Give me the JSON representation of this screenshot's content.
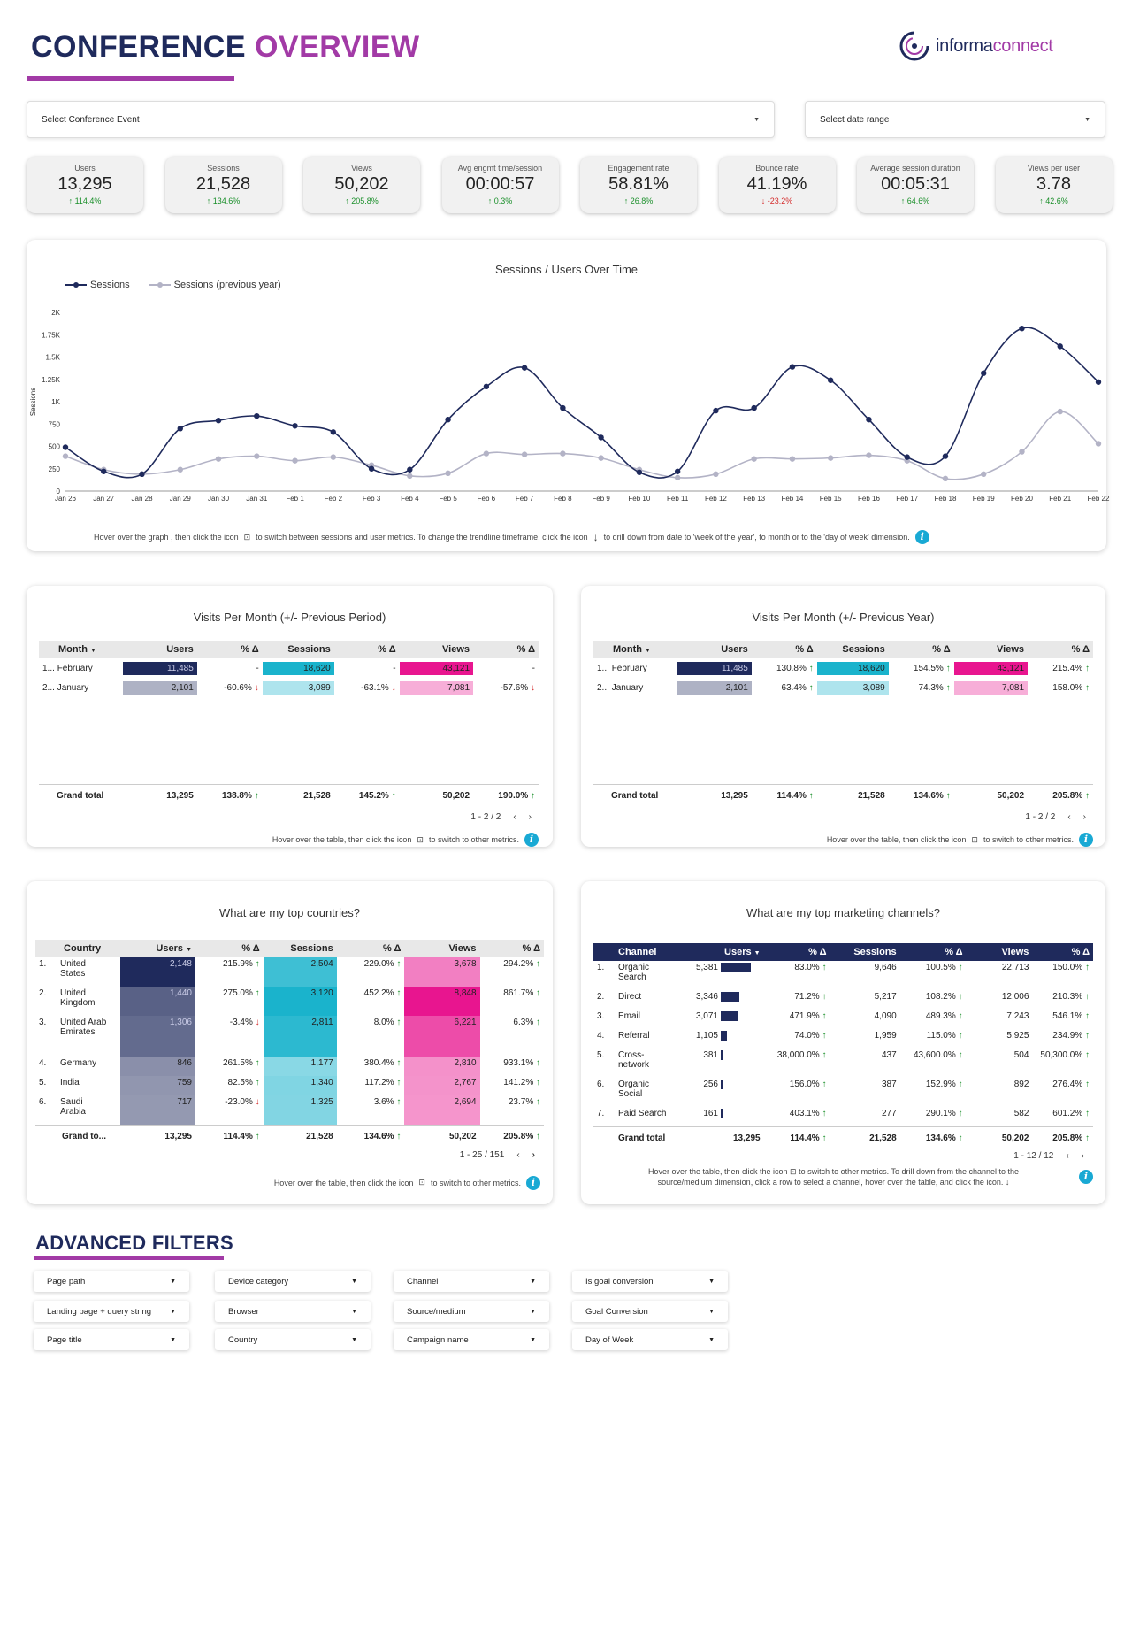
{
  "header": {
    "title_a": "CONFERENCE",
    "title_b": "OVERVIEW",
    "logo_a": "informa",
    "logo_b": "connect"
  },
  "filters_top": {
    "event": "Select Conference Event",
    "date": "Select date range"
  },
  "kpis": [
    {
      "label": "Users",
      "value": "13,295",
      "delta": "114.4%",
      "dir": "up"
    },
    {
      "label": "Sessions",
      "value": "21,528",
      "delta": "134.6%",
      "dir": "up"
    },
    {
      "label": "Views",
      "value": "50,202",
      "delta": "205.8%",
      "dir": "up"
    },
    {
      "label": "Avg engmt time/session",
      "value": "00:00:57",
      "delta": "0.3%",
      "dir": "up"
    },
    {
      "label": "Engagement rate",
      "value": "58.81%",
      "delta": "26.8%",
      "dir": "up"
    },
    {
      "label": "Bounce rate",
      "value": "41.19%",
      "delta": "-23.2%",
      "dir": "down"
    },
    {
      "label": "Average session duration",
      "value": "00:05:31",
      "delta": "64.6%",
      "dir": "up"
    },
    {
      "label": "Views per user",
      "value": "3.78",
      "delta": "42.6%",
      "dir": "up"
    }
  ],
  "colors": {
    "navy": "#1f2a5c",
    "gray_line": "#b3b3c6",
    "purple": "#a23aa6",
    "teal": "#1ab3cc",
    "magenta": "#e8158f"
  },
  "chart_data": {
    "type": "line",
    "title": "Sessions / Users Over Time",
    "ylabel": "Sessions",
    "ylim": [
      0,
      2000
    ],
    "yticks": [
      "0",
      "250",
      "500",
      "750",
      "1K",
      "1.25K",
      "1.5K",
      "1.75K",
      "2K"
    ],
    "x": [
      "Jan 26",
      "Jan 27",
      "Jan 28",
      "Jan 29",
      "Jan 30",
      "Jan 31",
      "Feb 1",
      "Feb 2",
      "Feb 3",
      "Feb 4",
      "Feb 5",
      "Feb 6",
      "Feb 7",
      "Feb 8",
      "Feb 9",
      "Feb 10",
      "Feb 11",
      "Feb 12",
      "Feb 13",
      "Feb 14",
      "Feb 15",
      "Feb 16",
      "Feb 17",
      "Feb 18",
      "Feb 19",
      "Feb 20",
      "Feb 21",
      "Feb 22"
    ],
    "series": [
      {
        "name": "Sessions",
        "values": [
          490,
          220,
          190,
          700,
          790,
          840,
          730,
          660,
          250,
          240,
          800,
          1170,
          1380,
          930,
          600,
          210,
          220,
          900,
          930,
          1390,
          1240,
          800,
          380,
          390,
          1320,
          1820,
          1620,
          1220
        ]
      },
      {
        "name": "Sessions (previous year)",
        "values": [
          390,
          240,
          190,
          240,
          360,
          390,
          340,
          380,
          290,
          170,
          200,
          420,
          410,
          420,
          370,
          240,
          150,
          190,
          360,
          360,
          370,
          400,
          340,
          140,
          190,
          440,
          890,
          530
        ]
      }
    ],
    "legend": "top-left"
  },
  "chart_hint": {
    "a": "Hover over the graph , then click the icon",
    "b": "to switch between sessions and user metrics. To change the trendline timeframe, click the icon",
    "c": "to drill down from date to 'week of the year', to month or to the 'day of week' dimension."
  },
  "visits_period": {
    "title": "Visits Per Month (+/- Previous Period)",
    "headers": [
      "Month",
      "Users",
      "% Δ",
      "Sessions",
      "% Δ",
      "Views",
      "% Δ"
    ],
    "rows": [
      {
        "idx": "1...",
        "month": "February",
        "users": "11,485",
        "users_d": "-",
        "sessions": "18,620",
        "sessions_d": "-",
        "views": "43,121",
        "views_d": "-",
        "users_share": 1,
        "sessions_share": 1,
        "views_share": 1
      },
      {
        "idx": "2...",
        "month": "January",
        "users": "2,101",
        "users_d": "-60.6%",
        "sessions": "3,089",
        "sessions_d": "-63.1%",
        "views": "7,081",
        "views_d": "-57.6%",
        "users_share": 0.18,
        "sessions_share": 0.17,
        "views_share": 0.16
      }
    ],
    "total": {
      "label": "Grand total",
      "users": "13,295",
      "users_d": "138.8%",
      "sessions": "21,528",
      "sessions_d": "145.2%",
      "views": "50,202",
      "views_d": "190.0%"
    },
    "pager": "1 - 2 / 2"
  },
  "visits_year": {
    "title": "Visits Per Month (+/- Previous Year)",
    "headers": [
      "Month",
      "Users",
      "% Δ",
      "Sessions",
      "% Δ",
      "Views",
      "% Δ"
    ],
    "rows": [
      {
        "idx": "1...",
        "month": "February",
        "users": "11,485",
        "users_d": "130.8%",
        "sessions": "18,620",
        "sessions_d": "154.5%",
        "views": "43,121",
        "views_d": "215.4%",
        "users_share": 1,
        "sessions_share": 1,
        "views_share": 1
      },
      {
        "idx": "2...",
        "month": "January",
        "users": "2,101",
        "users_d": "63.4%",
        "sessions": "3,089",
        "sessions_d": "74.3%",
        "views": "7,081",
        "views_d": "158.0%",
        "users_share": 0.18,
        "sessions_share": 0.17,
        "views_share": 0.16
      }
    ],
    "total": {
      "label": "Grand total",
      "users": "13,295",
      "users_d": "114.4%",
      "sessions": "21,528",
      "sessions_d": "134.6%",
      "views": "50,202",
      "views_d": "205.8%"
    },
    "pager": "1 - 2 / 2"
  },
  "table_hint": {
    "a": "Hover over the table, then click the icon",
    "b": "to  switch to other metrics."
  },
  "countries": {
    "title": "What are my top countries?",
    "headers": [
      "Country",
      "Users",
      "% Δ",
      "Sessions",
      "% Δ",
      "Views",
      "% Δ"
    ],
    "rows": [
      {
        "idx": "1.",
        "name": "United States",
        "users": "2,148",
        "users_d": "215.9%",
        "sessions": "2,504",
        "sessions_d": "229.0%",
        "views": "3,678",
        "views_d": "294.2%",
        "u": 1.0,
        "s": 0.8,
        "v": 0.42
      },
      {
        "idx": "2.",
        "name": "United Kingdom",
        "users": "1,440",
        "users_d": "275.0%",
        "sessions": "3,120",
        "sessions_d": "452.2%",
        "views": "8,848",
        "views_d": "861.7%",
        "u": 0.67,
        "s": 1.0,
        "v": 1.0
      },
      {
        "idx": "3.",
        "name": "United Arab Emirates",
        "users": "1,306",
        "users_d": "-3.4%",
        "sessions": "2,811",
        "sessions_d": "8.0%",
        "views": "6,221",
        "views_d": "6.3%",
        "u": 0.61,
        "s": 0.9,
        "v": 0.7
      },
      {
        "idx": "4.",
        "name": "Germany",
        "users": "846",
        "users_d": "261.5%",
        "sessions": "1,177",
        "sessions_d": "380.4%",
        "views": "2,810",
        "views_d": "933.1%",
        "u": 0.39,
        "s": 0.38,
        "v": 0.32
      },
      {
        "idx": "5.",
        "name": "India",
        "users": "759",
        "users_d": "82.5%",
        "sessions": "1,340",
        "sessions_d": "117.2%",
        "views": "2,767",
        "views_d": "141.2%",
        "u": 0.35,
        "s": 0.43,
        "v": 0.31
      },
      {
        "idx": "6.",
        "name": "Saudi Arabia",
        "users": "717",
        "users_d": "-23.0%",
        "sessions": "1,325",
        "sessions_d": "3.6%",
        "views": "2,694",
        "views_d": "23.7%",
        "u": 0.33,
        "s": 0.42,
        "v": 0.3
      }
    ],
    "total": {
      "label": "Grand to...",
      "users": "13,295",
      "users_d": "114.4%",
      "sessions": "21,528",
      "sessions_d": "134.6%",
      "views": "50,202",
      "views_d": "205.8%"
    },
    "pager": "1 - 25 / 151"
  },
  "channels": {
    "title": "What are my top marketing channels?",
    "headers": [
      "Channel",
      "Users",
      "% Δ",
      "Sessions",
      "% Δ",
      "Views",
      "% Δ"
    ],
    "rows": [
      {
        "idx": "1.",
        "name": "Organic Search",
        "users": "5,381",
        "users_share": 1.0,
        "users_d": "83.0%",
        "sessions": "9,646",
        "sessions_d": "100.5%",
        "views": "22,713",
        "views_d": "150.0%"
      },
      {
        "idx": "2.",
        "name": "Direct",
        "users": "3,346",
        "users_share": 0.62,
        "users_d": "71.2%",
        "sessions": "5,217",
        "sessions_d": "108.2%",
        "views": "12,006",
        "views_d": "210.3%"
      },
      {
        "idx": "3.",
        "name": "Email",
        "users": "3,071",
        "users_share": 0.57,
        "users_d": "471.9%",
        "sessions": "4,090",
        "sessions_d": "489.3%",
        "views": "7,243",
        "views_d": "546.1%"
      },
      {
        "idx": "4.",
        "name": "Referral",
        "users": "1,105",
        "users_share": 0.21,
        "users_d": "74.0%",
        "sessions": "1,959",
        "sessions_d": "115.0%",
        "views": "5,925",
        "views_d": "234.9%"
      },
      {
        "idx": "5.",
        "name": "Cross-network",
        "users": "381",
        "users_share": 0.07,
        "users_d": "38,000.0%",
        "sessions": "437",
        "sessions_d": "43,600.0%",
        "views": "504",
        "views_d": "50,300.0%"
      },
      {
        "idx": "6.",
        "name": "Organic Social",
        "users": "256",
        "users_share": 0.05,
        "users_d": "156.0%",
        "sessions": "387",
        "sessions_d": "152.9%",
        "views": "892",
        "views_d": "276.4%"
      },
      {
        "idx": "7.",
        "name": "Paid Search",
        "users": "161",
        "users_share": 0.03,
        "users_d": "403.1%",
        "sessions": "277",
        "sessions_d": "290.1%",
        "views": "582",
        "views_d": "601.2%"
      }
    ],
    "total": {
      "label": "Grand total",
      "users": "13,295",
      "users_d": "114.4%",
      "sessions": "21,528",
      "sessions_d": "134.6%",
      "views": "50,202",
      "views_d": "205.8%"
    },
    "pager": "1 - 12 / 12",
    "hint_a": "Hover over the table, then click the icon",
    "hint_b": "to switch to other metrics. To drill down from the channel to the",
    "hint_c": "source/medium dimension, click a row to select a channel, hover over the table, and click the icon."
  },
  "advanced": {
    "title": "ADVANCED FILTERS",
    "filters": [
      [
        "Page path",
        "Device category",
        "Channel",
        "Is goal conversion"
      ],
      [
        "Landing page + query string",
        "Browser",
        "Source/medium",
        "Goal Conversion"
      ],
      [
        "Page title",
        "Country",
        "Campaign name",
        "Day of Week"
      ]
    ]
  }
}
